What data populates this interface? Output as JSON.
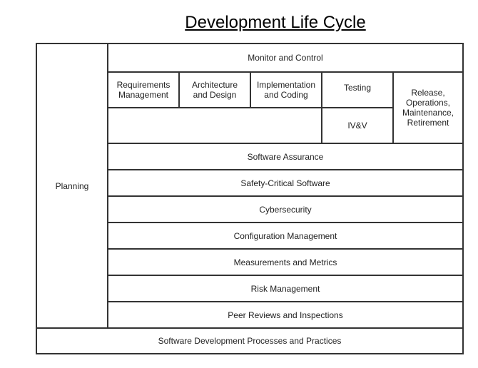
{
  "title": "Development Life Cycle",
  "planning": "Planning",
  "monitor": "Monitor and Control",
  "phases": [
    "Requirements Management",
    "Architecture and Design",
    "Implementation and Coding",
    "Testing",
    "Release, Operations, Maintenance, Retirement"
  ],
  "ivv": "IV&V",
  "rows": [
    "Software Assurance",
    "Safety-Critical Software",
    "Cybersecurity",
    "Configuration Management",
    "Measurements and Metrics",
    "Risk Management",
    "Peer Reviews and Inspections"
  ],
  "foundation": "Software Development Processes and Practices"
}
